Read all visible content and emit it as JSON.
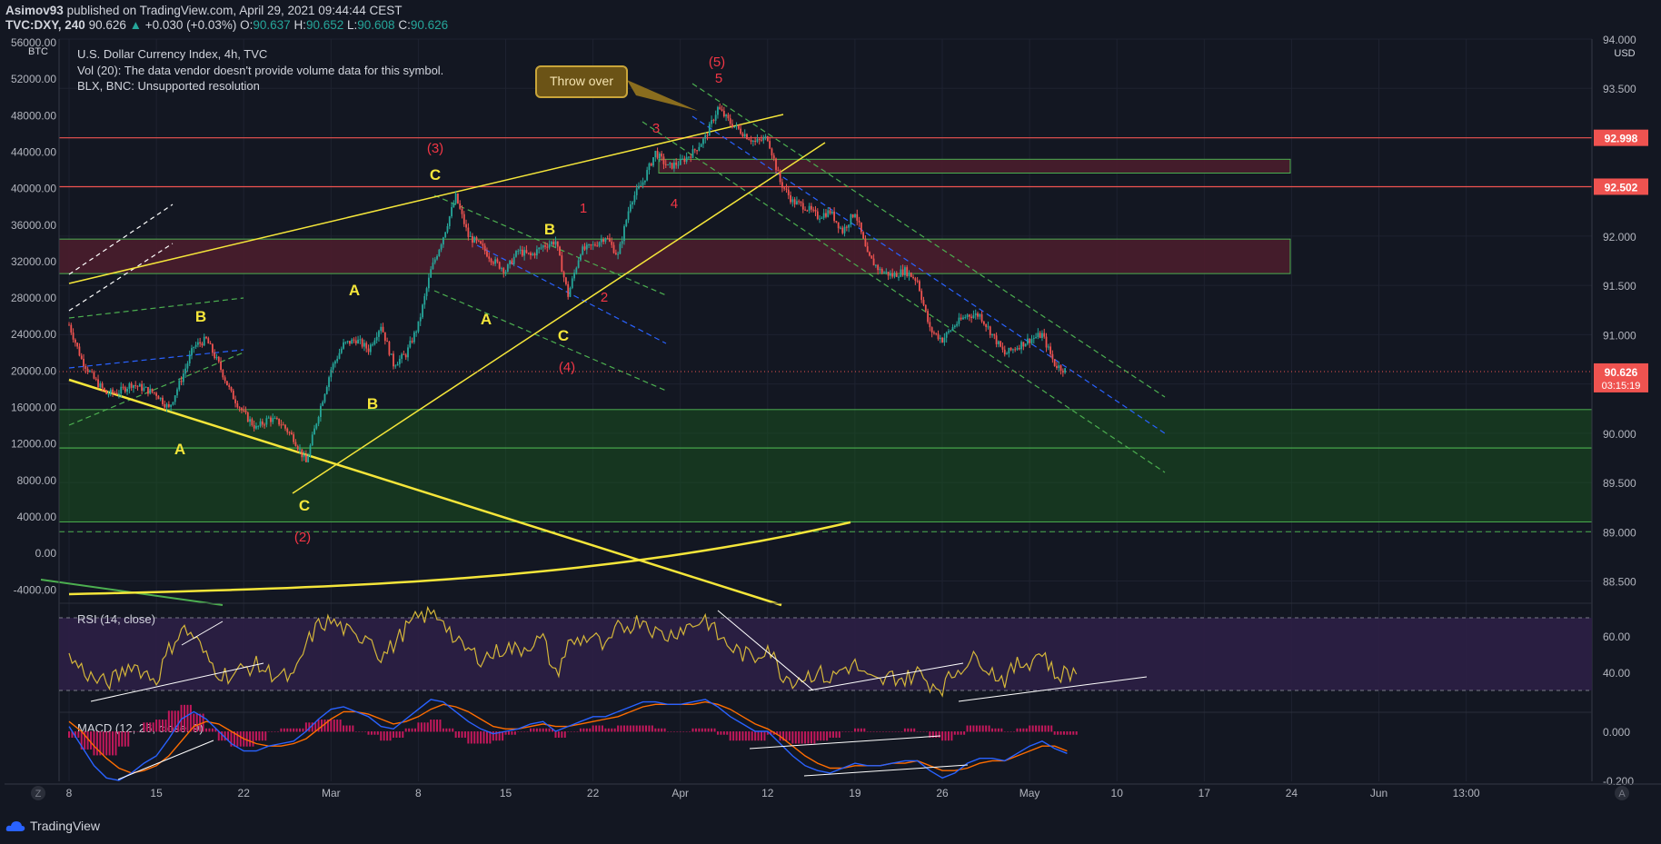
{
  "header": {
    "publisher": "Asimov93",
    "published_text": "published on TradingView.com, April 29, 2021 09:44:44 CEST",
    "symbol": "TVC:DXY, 240",
    "last": "90.626",
    "change": "+0.030 (+0.03%)",
    "o_label": "O:",
    "o": "90.637",
    "h_label": "H:",
    "h": "90.652",
    "l_label": "L:",
    "l": "90.608",
    "c_label": "C:",
    "c": "90.626"
  },
  "legend": {
    "title": "U.S. Dollar Currency Index, 4h, TVC",
    "vol": "Vol (20): The data vendor doesn't provide volume data for this symbol.",
    "blx": "BLX, BNC: Unsupported resolution",
    "rsi": "RSI (14, close)",
    "macd": "MACD (12, 26, close, 9)"
  },
  "colors": {
    "background": "#131722",
    "grid": "#1e2230",
    "up": "#26a69a",
    "down": "#ef5350",
    "yellow": "#f5e63a",
    "red_label": "#f23645",
    "green_zone": "#1b5e20",
    "maroon_zone": "#4a1d2c",
    "rsi_band": "#2c1f45",
    "rsi_line": "#d4b63a",
    "macd_line": "#2962ff",
    "signal_line": "#ff6d00",
    "hist": "#c2185b"
  },
  "chart_data": {
    "type": "candlestick",
    "title": "U.S. Dollar Currency Index, 4h, TVC",
    "xlabel": "",
    "ylabel": "",
    "x_ticks": [
      "8",
      "15",
      "22",
      "Mar",
      "8",
      "15",
      "22",
      "Apr",
      "12",
      "19",
      "26",
      "May",
      "10",
      "17",
      "24",
      "Jun",
      "13:00"
    ],
    "right_axis": {
      "unit": "USD",
      "ticks": [
        "94.000",
        "93.500",
        "93.000",
        "92.500",
        "92.000",
        "91.500",
        "91.000",
        "90.500",
        "90.000",
        "89.500",
        "89.000",
        "88.500"
      ],
      "range": [
        88.7,
        94.0
      ],
      "price_labels": [
        {
          "value": 92.998,
          "text": "92.998"
        },
        {
          "value": 92.502,
          "text": "92.502"
        },
        {
          "value": 90.626,
          "text": "90.626",
          "countdown": "03:15:19"
        }
      ]
    },
    "left_axis": {
      "unit": "BTC",
      "ticks": [
        "56000.00",
        "52000.00",
        "48000.00",
        "44000.00",
        "40000.00",
        "36000.00",
        "32000.00",
        "28000.00",
        "24000.00",
        "20000.00",
        "16000.00",
        "12000.00",
        "8000.00",
        "4000.00",
        "0.00",
        "-4000.00"
      ]
    },
    "price_path": [
      {
        "d": 0,
        "v": 91.1
      },
      {
        "d": 1,
        "v": 90.75
      },
      {
        "d": 2,
        "v": 90.55
      },
      {
        "d": 3,
        "v": 90.4
      },
      {
        "d": 4,
        "v": 90.42
      },
      {
        "d": 5,
        "v": 90.5
      },
      {
        "d": 7,
        "v": 90.4
      },
      {
        "d": 8,
        "v": 90.25
      },
      {
        "d": 9,
        "v": 90.55
      },
      {
        "d": 10,
        "v": 90.88
      },
      {
        "d": 11,
        "v": 90.95
      },
      {
        "d": 12,
        "v": 90.7
      },
      {
        "d": 13,
        "v": 90.4
      },
      {
        "d": 14,
        "v": 90.2
      },
      {
        "d": 15,
        "v": 90.05
      },
      {
        "d": 16,
        "v": 90.15
      },
      {
        "d": 17,
        "v": 90.1
      },
      {
        "d": 18,
        "v": 89.95
      },
      {
        "d": 19,
        "v": 89.7
      },
      {
        "d": 20,
        "v": 90.2
      },
      {
        "d": 21,
        "v": 90.65
      },
      {
        "d": 22,
        "v": 90.9
      },
      {
        "d": 23,
        "v": 90.95
      },
      {
        "d": 24,
        "v": 90.85
      },
      {
        "d": 25,
        "v": 91.1
      },
      {
        "d": 26,
        "v": 90.7
      },
      {
        "d": 27,
        "v": 90.8
      },
      {
        "d": 28,
        "v": 91.1
      },
      {
        "d": 29,
        "v": 91.65
      },
      {
        "d": 30,
        "v": 92.0
      },
      {
        "d": 31,
        "v": 92.4
      },
      {
        "d": 32,
        "v": 92.0
      },
      {
        "d": 33,
        "v": 91.9
      },
      {
        "d": 34,
        "v": 91.75
      },
      {
        "d": 35,
        "v": 91.65
      },
      {
        "d": 36,
        "v": 91.85
      },
      {
        "d": 37,
        "v": 91.8
      },
      {
        "d": 38,
        "v": 91.9
      },
      {
        "d": 39,
        "v": 91.95
      },
      {
        "d": 40,
        "v": 91.4
      },
      {
        "d": 41,
        "v": 91.85
      },
      {
        "d": 42,
        "v": 91.9
      },
      {
        "d": 43,
        "v": 92.0
      },
      {
        "d": 44,
        "v": 91.8
      },
      {
        "d": 45,
        "v": 92.35
      },
      {
        "d": 46,
        "v": 92.55
      },
      {
        "d": 47,
        "v": 92.85
      },
      {
        "d": 48,
        "v": 92.7
      },
      {
        "d": 49,
        "v": 92.75
      },
      {
        "d": 50,
        "v": 92.85
      },
      {
        "d": 51,
        "v": 93.0
      },
      {
        "d": 52,
        "v": 93.3
      },
      {
        "d": 53,
        "v": 93.15
      },
      {
        "d": 54,
        "v": 93.05
      },
      {
        "d": 55,
        "v": 92.95
      },
      {
        "d": 56,
        "v": 93.0
      },
      {
        "d": 57,
        "v": 92.55
      },
      {
        "d": 58,
        "v": 92.35
      },
      {
        "d": 59,
        "v": 92.3
      },
      {
        "d": 60,
        "v": 92.2
      },
      {
        "d": 61,
        "v": 92.25
      },
      {
        "d": 62,
        "v": 92.05
      },
      {
        "d": 63,
        "v": 92.25
      },
      {
        "d": 64,
        "v": 91.8
      },
      {
        "d": 65,
        "v": 91.65
      },
      {
        "d": 66,
        "v": 91.6
      },
      {
        "d": 67,
        "v": 91.65
      },
      {
        "d": 68,
        "v": 91.55
      },
      {
        "d": 69,
        "v": 91.05
      },
      {
        "d": 70,
        "v": 90.95
      },
      {
        "d": 71,
        "v": 91.1
      },
      {
        "d": 72,
        "v": 91.2
      },
      {
        "d": 73,
        "v": 91.2
      },
      {
        "d": 74,
        "v": 91.0
      },
      {
        "d": 75,
        "v": 90.8
      },
      {
        "d": 76,
        "v": 90.88
      },
      {
        "d": 77,
        "v": 90.95
      },
      {
        "d": 78,
        "v": 91.0
      },
      {
        "d": 79,
        "v": 90.7
      },
      {
        "d": 80,
        "v": 90.626
      }
    ],
    "zones": [
      {
        "from": 89.85,
        "to": 90.24,
        "color": "green"
      },
      {
        "from": 89.1,
        "to": 89.85,
        "color": "green"
      },
      {
        "from": 91.62,
        "to": 91.97,
        "color": "maroon"
      },
      {
        "from": 92.64,
        "to": 92.78,
        "color": "maroon"
      }
    ],
    "horizontal_lines": [
      92.998,
      92.502
    ],
    "annotations": [
      {
        "text": "Throw over",
        "type": "callout"
      },
      {
        "text": "(5)",
        "color": "red"
      },
      {
        "text": "5",
        "color": "red"
      },
      {
        "text": "(3)",
        "color": "red"
      },
      {
        "text": "3",
        "color": "red"
      },
      {
        "text": "(4)",
        "color": "red"
      },
      {
        "text": "4",
        "color": "red"
      },
      {
        "text": "(2)",
        "color": "red"
      },
      {
        "text": "2",
        "color": "red"
      },
      {
        "text": "1",
        "color": "red"
      },
      {
        "text": "C",
        "color": "yellow"
      },
      {
        "text": "B",
        "color": "yellow"
      },
      {
        "text": "A",
        "color": "yellow"
      },
      {
        "text": "A",
        "color": "yellow"
      },
      {
        "text": "B",
        "color": "yellow"
      },
      {
        "text": "A",
        "color": "yellow"
      },
      {
        "text": "B",
        "color": "yellow"
      },
      {
        "text": "C",
        "color": "yellow"
      },
      {
        "text": "C",
        "color": "yellow"
      }
    ],
    "rsi": {
      "ticks": [
        "60.00",
        "40.00"
      ],
      "values": [
        48,
        42,
        36,
        34,
        38,
        45,
        40,
        36,
        52,
        64,
        60,
        48,
        40,
        38,
        42,
        44,
        40,
        38,
        36,
        55,
        66,
        68,
        64,
        58,
        62,
        48,
        55,
        64,
        70,
        72,
        70,
        56,
        52,
        48,
        50,
        54,
        52,
        56,
        58,
        38,
        55,
        58,
        60,
        52,
        64,
        66,
        70,
        62,
        60,
        64,
        66,
        70,
        60,
        54,
        50,
        48,
        55,
        40,
        36,
        38,
        40,
        36,
        42,
        44,
        36,
        34,
        38,
        36,
        40,
        34,
        32,
        40,
        46,
        48,
        40,
        36,
        44,
        46,
        52,
        38,
        40
      ]
    },
    "macd": {
      "ticks": [
        "0.000",
        "-0.200"
      ],
      "macd": [
        0.02,
        -0.06,
        -0.14,
        -0.19,
        -0.2,
        -0.17,
        -0.13,
        -0.1,
        -0.03,
        0.05,
        0.08,
        0.05,
        0.0,
        -0.05,
        -0.08,
        -0.08,
        -0.06,
        -0.05,
        -0.04,
        0.0,
        0.05,
        0.09,
        0.1,
        0.08,
        0.06,
        0.02,
        0.01,
        0.05,
        0.09,
        0.13,
        0.12,
        0.08,
        0.04,
        0.01,
        -0.01,
        0.0,
        0.01,
        0.03,
        0.04,
        0.0,
        0.02,
        0.04,
        0.06,
        0.06,
        0.08,
        0.1,
        0.12,
        0.12,
        0.11,
        0.11,
        0.12,
        0.13,
        0.1,
        0.06,
        0.03,
        0.0,
        0.0,
        -0.05,
        -0.1,
        -0.14,
        -0.16,
        -0.17,
        -0.15,
        -0.13,
        -0.14,
        -0.14,
        -0.13,
        -0.12,
        -0.12,
        -0.16,
        -0.19,
        -0.17,
        -0.13,
        -0.11,
        -0.11,
        -0.12,
        -0.09,
        -0.06,
        -0.04,
        -0.07,
        -0.09
      ],
      "signal": [
        0.04,
        0.0,
        -0.06,
        -0.11,
        -0.15,
        -0.17,
        -0.16,
        -0.14,
        -0.1,
        -0.04,
        0.02,
        0.04,
        0.03,
        0.0,
        -0.03,
        -0.05,
        -0.06,
        -0.06,
        -0.05,
        -0.03,
        0.01,
        0.05,
        0.08,
        0.08,
        0.07,
        0.05,
        0.03,
        0.04,
        0.06,
        0.09,
        0.11,
        0.1,
        0.08,
        0.05,
        0.02,
        0.01,
        0.01,
        0.02,
        0.03,
        0.02,
        0.02,
        0.03,
        0.04,
        0.05,
        0.06,
        0.08,
        0.1,
        0.11,
        0.11,
        0.11,
        0.11,
        0.12,
        0.11,
        0.09,
        0.06,
        0.03,
        0.01,
        -0.02,
        -0.06,
        -0.1,
        -0.13,
        -0.15,
        -0.15,
        -0.14,
        -0.14,
        -0.14,
        -0.13,
        -0.13,
        -0.12,
        -0.14,
        -0.16,
        -0.16,
        -0.15,
        -0.13,
        -0.12,
        -0.12,
        -0.1,
        -0.08,
        -0.06,
        -0.06,
        -0.08
      ]
    }
  },
  "footer": {
    "brand": "TradingView",
    "timezone_btn": "Z",
    "auto_btn": "A"
  }
}
